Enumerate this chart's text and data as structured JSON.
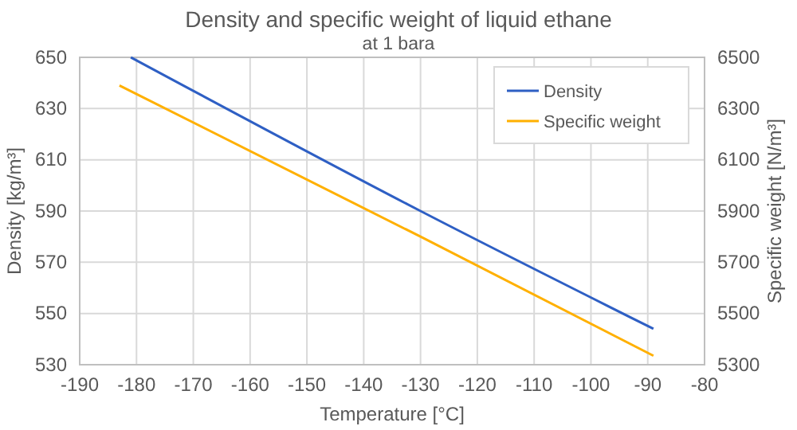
{
  "chart_data": {
    "type": "line",
    "title": "Density and specific weight of liquid ethane",
    "subtitle": "at 1 bara",
    "xlabel": "Temperature  [°C]",
    "ylabel": "Density [kg/m³]",
    "y2label": "Specific weight [N/m³]",
    "xlim": [
      -190,
      -80
    ],
    "xticks": [
      -190,
      -180,
      -170,
      -160,
      -150,
      -140,
      -130,
      -120,
      -110,
      -100,
      -90,
      -80
    ],
    "ylim": [
      530,
      650
    ],
    "yticks": [
      530,
      550,
      570,
      590,
      610,
      630,
      650
    ],
    "y2lim": [
      5300,
      6500
    ],
    "y2ticks": [
      5300,
      5500,
      5700,
      5900,
      6100,
      6300,
      6500
    ],
    "grid": true,
    "legend": "top right",
    "series": [
      {
        "name": "Density",
        "color": "#2e5fc4",
        "x": [
          -181,
          -130,
          -89
        ],
        "values": [
          650,
          590,
          544
        ]
      },
      {
        "name": "Specific weight",
        "color": "#ffb000",
        "axis": "y2",
        "x": [
          -183,
          -130,
          -89
        ],
        "values": [
          6390,
          5800,
          5335
        ]
      }
    ]
  }
}
